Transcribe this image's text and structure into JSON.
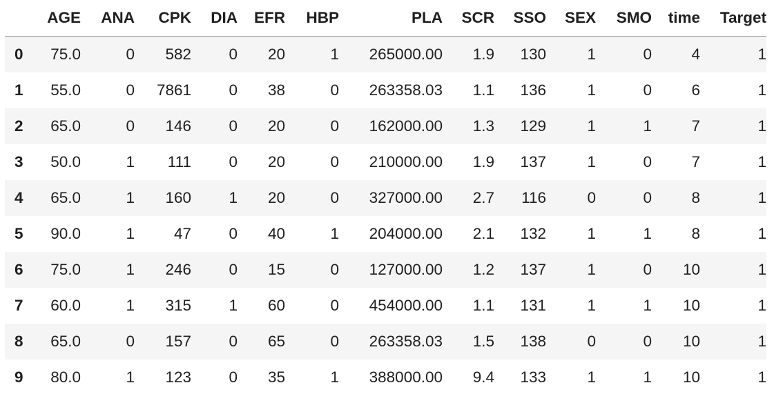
{
  "table": {
    "index_header": "",
    "columns": [
      "AGE",
      "ANA",
      "CPK",
      "DIA",
      "EFR",
      "HBP",
      "PLA",
      "SCR",
      "SSO",
      "SEX",
      "SMO",
      "time",
      "Target"
    ],
    "rows": [
      {
        "index": "0",
        "cells": [
          "75.0",
          "0",
          "582",
          "0",
          "20",
          "1",
          "265000.00",
          "1.9",
          "130",
          "1",
          "0",
          "4",
          "1"
        ]
      },
      {
        "index": "1",
        "cells": [
          "55.0",
          "0",
          "7861",
          "0",
          "38",
          "0",
          "263358.03",
          "1.1",
          "136",
          "1",
          "0",
          "6",
          "1"
        ]
      },
      {
        "index": "2",
        "cells": [
          "65.0",
          "0",
          "146",
          "0",
          "20",
          "0",
          "162000.00",
          "1.3",
          "129",
          "1",
          "1",
          "7",
          "1"
        ]
      },
      {
        "index": "3",
        "cells": [
          "50.0",
          "1",
          "111",
          "0",
          "20",
          "0",
          "210000.00",
          "1.9",
          "137",
          "1",
          "0",
          "7",
          "1"
        ]
      },
      {
        "index": "4",
        "cells": [
          "65.0",
          "1",
          "160",
          "1",
          "20",
          "0",
          "327000.00",
          "2.7",
          "116",
          "0",
          "0",
          "8",
          "1"
        ]
      },
      {
        "index": "5",
        "cells": [
          "90.0",
          "1",
          "47",
          "0",
          "40",
          "1",
          "204000.00",
          "2.1",
          "132",
          "1",
          "1",
          "8",
          "1"
        ]
      },
      {
        "index": "6",
        "cells": [
          "75.0",
          "1",
          "246",
          "0",
          "15",
          "0",
          "127000.00",
          "1.2",
          "137",
          "1",
          "0",
          "10",
          "1"
        ]
      },
      {
        "index": "7",
        "cells": [
          "60.0",
          "1",
          "315",
          "1",
          "60",
          "0",
          "454000.00",
          "1.1",
          "131",
          "1",
          "1",
          "10",
          "1"
        ]
      },
      {
        "index": "8",
        "cells": [
          "65.0",
          "0",
          "157",
          "0",
          "65",
          "0",
          "263358.03",
          "1.5",
          "138",
          "0",
          "0",
          "10",
          "1"
        ]
      },
      {
        "index": "9",
        "cells": [
          "80.0",
          "1",
          "123",
          "0",
          "35",
          "1",
          "388000.00",
          "9.4",
          "133",
          "1",
          "1",
          "10",
          "1"
        ]
      }
    ]
  }
}
